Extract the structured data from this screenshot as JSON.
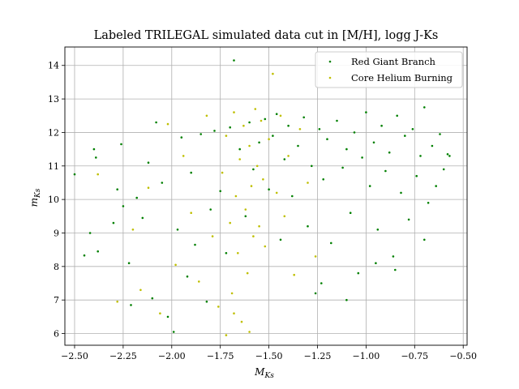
{
  "chart_data": {
    "type": "scatter",
    "title": "Labeled TRILEGAL simulated data cut in [M/H], logg  J-Ks",
    "xlabel": {
      "base": "M",
      "sub": "Ks"
    },
    "ylabel": {
      "base": "m",
      "sub": "Ks"
    },
    "xlim": [
      -2.55,
      -0.48
    ],
    "ylim": [
      5.65,
      14.55
    ],
    "xticks": [
      -2.5,
      -2.25,
      -2.0,
      -1.75,
      -1.5,
      -1.25,
      -1.0,
      -0.75,
      -0.5
    ],
    "xtick_labels": [
      "−2.50",
      "−2.25",
      "−2.00",
      "−1.75",
      "−1.50",
      "−1.25",
      "−1.00",
      "−0.75",
      "−0.50"
    ],
    "yticks": [
      6,
      7,
      8,
      9,
      10,
      11,
      12,
      13,
      14
    ],
    "ytick_labels": [
      "6",
      "7",
      "8",
      "9",
      "10",
      "11",
      "12",
      "13",
      "14"
    ],
    "grid": true,
    "legend_position": "top-right",
    "series": [
      {
        "name": "Red Giant Branch",
        "color": "#008000",
        "points": [
          [
            -2.5,
            10.75
          ],
          [
            -2.45,
            8.33
          ],
          [
            -2.42,
            9.0
          ],
          [
            -2.4,
            11.5
          ],
          [
            -2.39,
            11.25
          ],
          [
            -2.38,
            8.45
          ],
          [
            -2.3,
            9.3
          ],
          [
            -2.28,
            10.3
          ],
          [
            -2.26,
            11.65
          ],
          [
            -2.25,
            9.8
          ],
          [
            -2.22,
            8.1
          ],
          [
            -2.21,
            6.85
          ],
          [
            -2.18,
            10.05
          ],
          [
            -2.15,
            9.45
          ],
          [
            -2.12,
            11.1
          ],
          [
            -2.08,
            12.3
          ],
          [
            -2.05,
            10.5
          ],
          [
            -2.02,
            6.5
          ],
          [
            -1.99,
            6.05
          ],
          [
            -1.97,
            9.1
          ],
          [
            -1.95,
            11.85
          ],
          [
            -1.92,
            7.7
          ],
          [
            -1.9,
            10.8
          ],
          [
            -1.88,
            8.65
          ],
          [
            -1.85,
            11.95
          ],
          [
            -1.82,
            6.95
          ],
          [
            -1.8,
            9.7
          ],
          [
            -1.78,
            12.05
          ],
          [
            -1.75,
            10.25
          ],
          [
            -1.72,
            8.4
          ],
          [
            -1.7,
            12.15
          ],
          [
            -1.68,
            14.15
          ],
          [
            -1.65,
            11.5
          ],
          [
            -1.62,
            9.5
          ],
          [
            -1.6,
            12.3
          ],
          [
            -1.58,
            10.9
          ],
          [
            -1.55,
            11.7
          ],
          [
            -1.52,
            12.4
          ],
          [
            -1.5,
            10.3
          ],
          [
            -1.48,
            11.9
          ],
          [
            -1.46,
            12.55
          ],
          [
            -1.44,
            8.8
          ],
          [
            -1.42,
            11.2
          ],
          [
            -1.4,
            12.2
          ],
          [
            -1.38,
            10.1
          ],
          [
            -1.35,
            11.6
          ],
          [
            -1.32,
            12.45
          ],
          [
            -1.3,
            9.2
          ],
          [
            -1.28,
            11.0
          ],
          [
            -1.26,
            7.2
          ],
          [
            -1.24,
            12.1
          ],
          [
            -1.22,
            10.6
          ],
          [
            -1.2,
            11.8
          ],
          [
            -1.18,
            8.7
          ],
          [
            -1.15,
            12.35
          ],
          [
            -1.12,
            10.95
          ],
          [
            -1.1,
            11.5
          ],
          [
            -1.08,
            9.6
          ],
          [
            -1.06,
            12.0
          ],
          [
            -1.04,
            7.8
          ],
          [
            -1.02,
            11.25
          ],
          [
            -1.0,
            12.6
          ],
          [
            -0.98,
            10.4
          ],
          [
            -0.96,
            11.7
          ],
          [
            -0.94,
            9.1
          ],
          [
            -0.92,
            12.2
          ],
          [
            -0.9,
            10.85
          ],
          [
            -0.88,
            11.4
          ],
          [
            -0.86,
            8.3
          ],
          [
            -0.84,
            12.5
          ],
          [
            -0.82,
            10.2
          ],
          [
            -0.8,
            11.9
          ],
          [
            -0.78,
            9.4
          ],
          [
            -0.76,
            12.1
          ],
          [
            -0.74,
            10.7
          ],
          [
            -0.72,
            11.3
          ],
          [
            -0.7,
            12.75
          ],
          [
            -0.68,
            9.9
          ],
          [
            -0.66,
            11.6
          ],
          [
            -0.64,
            10.4
          ],
          [
            -0.62,
            11.95
          ],
          [
            -0.6,
            10.9
          ],
          [
            -0.58,
            11.35
          ],
          [
            -0.57,
            11.3
          ],
          [
            -1.1,
            7.0
          ],
          [
            -0.85,
            7.9
          ],
          [
            -0.7,
            8.8
          ],
          [
            -0.95,
            8.1
          ],
          [
            -1.23,
            7.5
          ],
          [
            -2.1,
            7.05
          ]
        ]
      },
      {
        "name": "Core Helium Burning",
        "color": "#bfbf00",
        "points": [
          [
            -2.38,
            10.75
          ],
          [
            -2.28,
            6.95
          ],
          [
            -2.2,
            9.1
          ],
          [
            -2.16,
            7.3
          ],
          [
            -2.12,
            10.35
          ],
          [
            -2.06,
            6.6
          ],
          [
            -2.02,
            12.25
          ],
          [
            -1.98,
            8.05
          ],
          [
            -1.94,
            11.3
          ],
          [
            -1.9,
            9.6
          ],
          [
            -1.86,
            7.55
          ],
          [
            -1.82,
            12.5
          ],
          [
            -1.79,
            8.9
          ],
          [
            -1.76,
            6.8
          ],
          [
            -1.74,
            10.8
          ],
          [
            -1.72,
            11.9
          ],
          [
            -1.7,
            9.3
          ],
          [
            -1.69,
            7.2
          ],
          [
            -1.68,
            12.6
          ],
          [
            -1.67,
            10.1
          ],
          [
            -1.66,
            8.4
          ],
          [
            -1.65,
            11.2
          ],
          [
            -1.64,
            6.35
          ],
          [
            -1.63,
            12.2
          ],
          [
            -1.62,
            9.7
          ],
          [
            -1.61,
            7.8
          ],
          [
            -1.6,
            11.6
          ],
          [
            -1.59,
            10.4
          ],
          [
            -1.58,
            8.9
          ],
          [
            -1.57,
            12.7
          ],
          [
            -1.56,
            11.0
          ],
          [
            -1.55,
            9.2
          ],
          [
            -1.54,
            12.35
          ],
          [
            -1.53,
            10.6
          ],
          [
            -1.52,
            8.6
          ],
          [
            -1.5,
            11.8
          ],
          [
            -1.48,
            13.75
          ],
          [
            -1.46,
            10.2
          ],
          [
            -1.44,
            12.5
          ],
          [
            -1.42,
            9.5
          ],
          [
            -1.4,
            11.3
          ],
          [
            -1.37,
            7.75
          ],
          [
            -1.34,
            12.1
          ],
          [
            -1.3,
            10.5
          ],
          [
            -1.26,
            8.3
          ],
          [
            -1.6,
            6.05
          ],
          [
            -1.68,
            6.6
          ],
          [
            -1.72,
            5.95
          ]
        ]
      }
    ]
  }
}
